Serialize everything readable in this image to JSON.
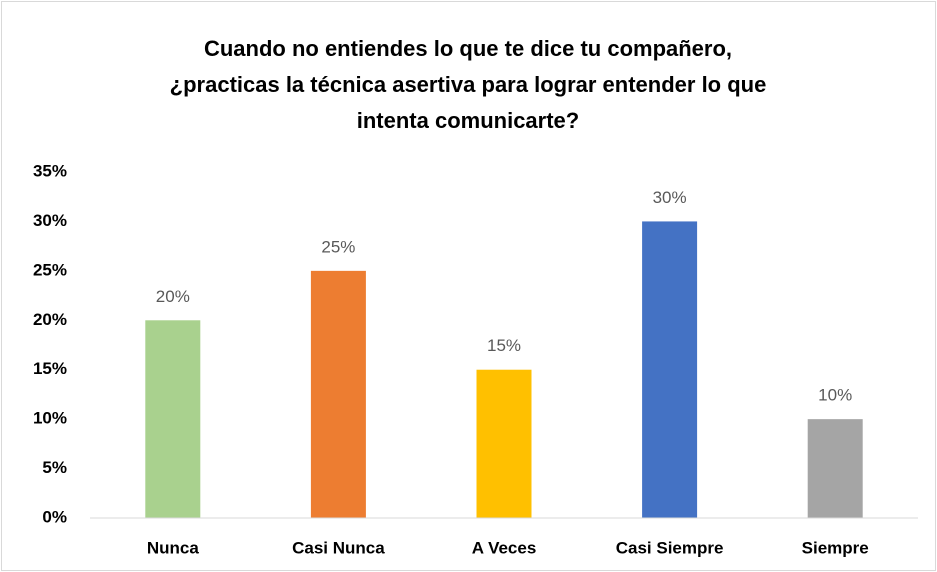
{
  "chart_data": {
    "type": "bar",
    "title": [
      "Cuando no entiendes lo que te dice tu compañero,",
      "¿practicas la técnica asertiva para lograr entender lo que",
      "intenta comunicarte?"
    ],
    "categories": [
      "Nunca",
      "Casi Nunca",
      "A Veces",
      "Casi Siempre",
      "Siempre"
    ],
    "values": [
      20,
      25,
      15,
      30,
      10
    ],
    "value_labels": [
      "20%",
      "25%",
      "15%",
      "30%",
      "10%"
    ],
    "colors": [
      "#a9d18e",
      "#ed7d31",
      "#ffc000",
      "#4472c4",
      "#a5a5a5"
    ],
    "ylim": [
      0,
      35
    ],
    "yticks": [
      {
        "value": 0,
        "label": "0%"
      },
      {
        "value": 5,
        "label": "5%"
      },
      {
        "value": 10,
        "label": "10%"
      },
      {
        "value": 15,
        "label": "15%"
      },
      {
        "value": 20,
        "label": "20%"
      },
      {
        "value": 25,
        "label": "25%"
      },
      {
        "value": 30,
        "label": "30%"
      },
      {
        "value": 35,
        "label": "35%"
      }
    ],
    "grid": false
  }
}
